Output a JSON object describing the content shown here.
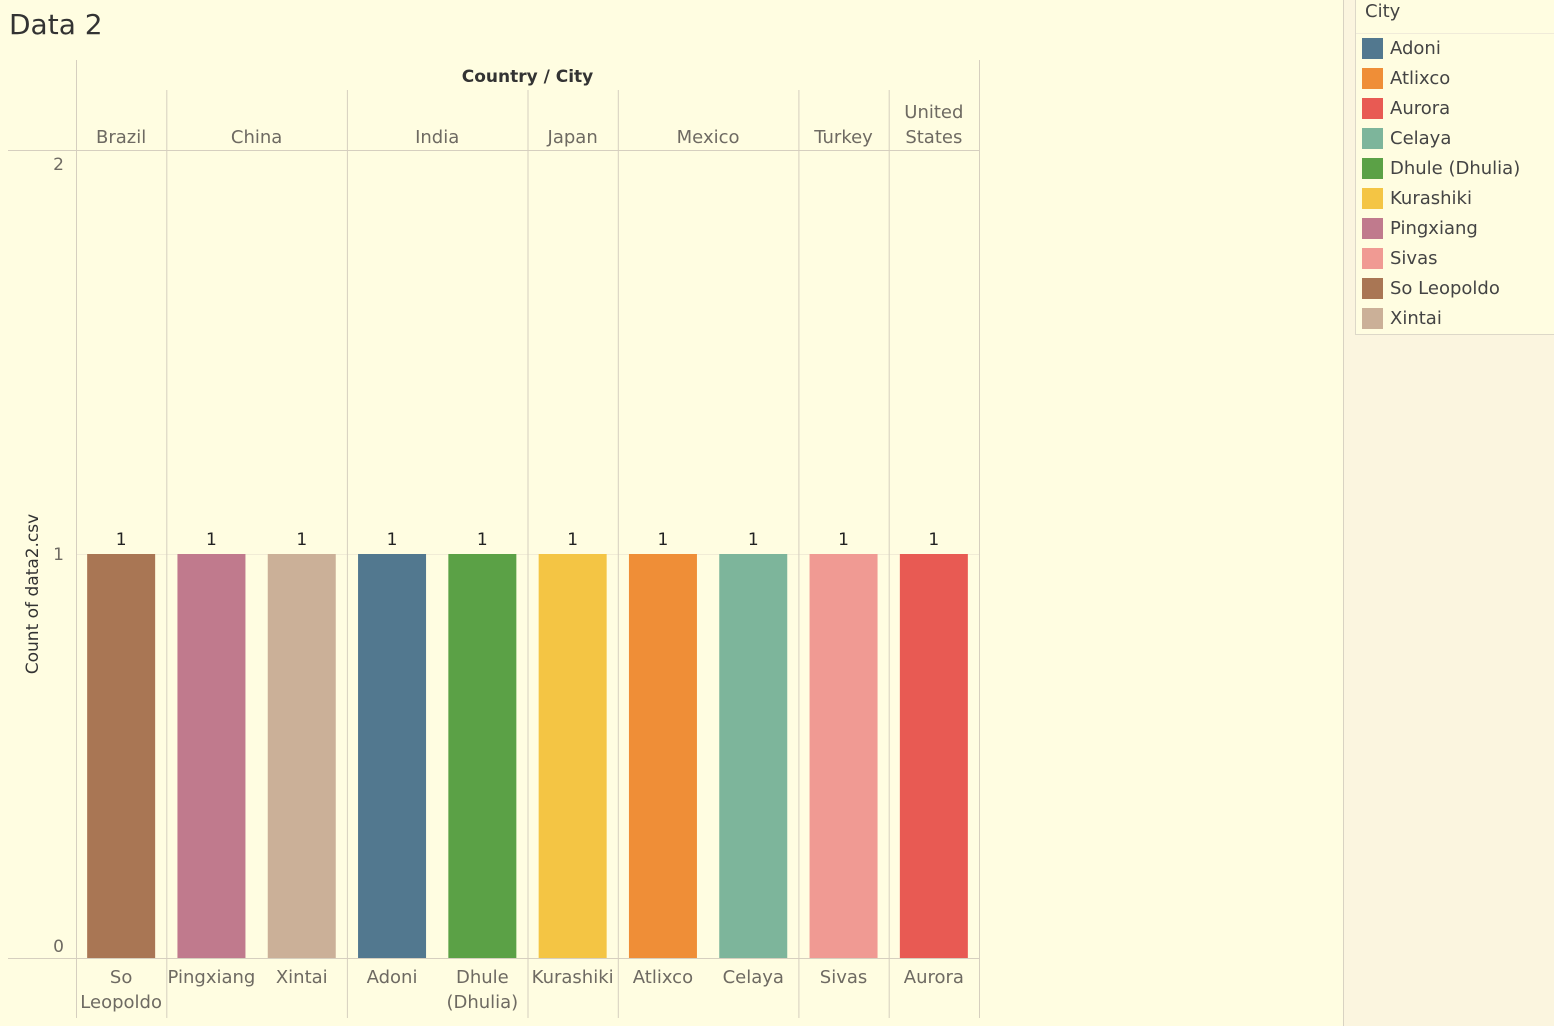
{
  "sheet_title": "Data 2",
  "legend": {
    "title": "City",
    "items": [
      {
        "label": "Adoni",
        "color": "#52788f"
      },
      {
        "label": "Atlixco",
        "color": "#ef8e37"
      },
      {
        "label": "Aurora",
        "color": "#e85a53"
      },
      {
        "label": "Celaya",
        "color": "#7db59b"
      },
      {
        "label": "Dhule (Dhulia)",
        "color": "#5ba146"
      },
      {
        "label": "Kurashiki",
        "color": "#f4c544"
      },
      {
        "label": "Pingxiang",
        "color": "#c07a8d"
      },
      {
        "label": "Sivas",
        "color": "#f09a93"
      },
      {
        "label": "So Leopoldo",
        "color": "#a97654"
      },
      {
        "label": "Xintai",
        "color": "#cbb098"
      }
    ]
  },
  "chart_data": {
    "type": "bar",
    "title": "",
    "column_header": "Country / City",
    "ylabel": "Count of data2.csv",
    "ylim": [
      0,
      2
    ],
    "yticks": [
      0,
      1,
      2
    ],
    "grid": true,
    "legend_placement": "right",
    "groups": [
      {
        "label": "Brazil",
        "cities": [
          {
            "label": "So Leopoldo",
            "value": 1,
            "color": "#a97654"
          }
        ]
      },
      {
        "label": "China",
        "cities": [
          {
            "label": "Pingxiang",
            "value": 1,
            "color": "#c07a8d"
          },
          {
            "label": "Xintai",
            "value": 1,
            "color": "#cbb098"
          }
        ]
      },
      {
        "label": "India",
        "cities": [
          {
            "label": "Adoni",
            "value": 1,
            "color": "#52788f"
          },
          {
            "label": "Dhule (Dhulia)",
            "value": 1,
            "color": "#5ba146"
          }
        ]
      },
      {
        "label": "Japan",
        "cities": [
          {
            "label": "Kurashiki",
            "value": 1,
            "color": "#f4c544"
          }
        ]
      },
      {
        "label": "Mexico",
        "cities": [
          {
            "label": "Atlixco",
            "value": 1,
            "color": "#ef8e37"
          },
          {
            "label": "Celaya",
            "value": 1,
            "color": "#7db59b"
          }
        ]
      },
      {
        "label": "Turkey",
        "cities": [
          {
            "label": "Sivas",
            "value": 1,
            "color": "#f09a93"
          }
        ]
      },
      {
        "label": "United States",
        "cities": [
          {
            "label": "Aurora",
            "value": 1,
            "color": "#e85a53"
          }
        ]
      }
    ]
  }
}
